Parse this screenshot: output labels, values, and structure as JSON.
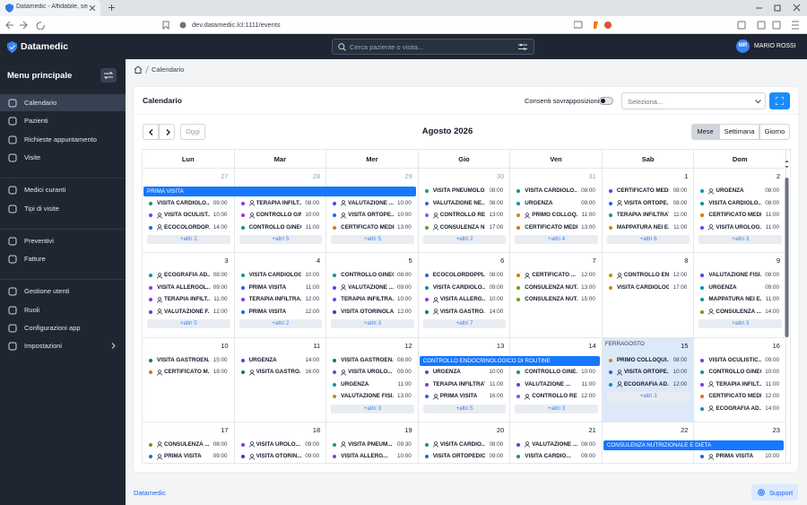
{
  "browser": {
    "tab_title": "Datamedic - Affidabile, semp...",
    "url": "dev.datamedic.lcl:1111/events"
  },
  "header": {
    "brand": "Datamedic",
    "search_placeholder": "Cerca paziente o visita...",
    "avatar_initials": "MR",
    "user_name": "MARIO ROSSI"
  },
  "sidebar": {
    "title": "Menu principale",
    "groups": [
      [
        {
          "label": "Calendario",
          "active": true
        },
        {
          "label": "Pazienti"
        },
        {
          "label": "Richieste appuntamento"
        },
        {
          "label": "Visite"
        }
      ],
      [
        {
          "label": "Medici curanti"
        },
        {
          "label": "Tipi di visite"
        }
      ],
      [
        {
          "label": "Preventivi"
        },
        {
          "label": "Fatture"
        }
      ],
      [
        {
          "label": "Gestione utenti"
        },
        {
          "label": "Ruoli"
        },
        {
          "label": "Configurazioni app"
        },
        {
          "label": "Impostazioni",
          "submenu": true
        }
      ]
    ]
  },
  "breadcrumb": {
    "current": "Calendario"
  },
  "calendar": {
    "title": "Calendario",
    "overlap_label": "Consenti sovrapposizioni",
    "select_placeholder": "Seleziona...",
    "today_button": "Oggi",
    "month_label": "Agosto 2026",
    "views": [
      {
        "label": "Mese",
        "active": true
      },
      {
        "label": "Settimana"
      },
      {
        "label": "Giorno"
      }
    ],
    "weekdays": [
      "Lun",
      "Mar",
      "Mer",
      "Gio",
      "Ven",
      "Sab",
      "Dom"
    ],
    "weeks": [
      {
        "banners": [
          {
            "label": "PRIMA VISITA",
            "days": [
              27,
              28,
              29
            ]
          }
        ],
        "days": [
          {
            "number": 27,
            "muted": true,
            "more": "+altri 2",
            "events": [
              {
                "title": "VISITA CARDIOLO...",
                "time": "09:00",
                "color": "#0d9488"
              },
              {
                "title": "VISITA OCULIST...",
                "time": "10:00",
                "color": "#7c3aed",
                "patient": true
              },
              {
                "title": "ECOCOLORDOP...",
                "time": "14:00",
                "color": "#2563eb",
                "patient": true
              }
            ]
          },
          {
            "number": 28,
            "muted": true,
            "more": "+altri 5",
            "events": [
              {
                "title": "TERAPIA INFILT...",
                "time": "08:00",
                "color": "#7c3aed",
                "patient": true
              },
              {
                "title": "CONTROLLO GINEC...",
                "time": "10:00",
                "color": "#9333ea",
                "patient": true
              },
              {
                "title": "CONTROLLO GINEC...",
                "time": "11:00",
                "color": "#0d9488"
              }
            ]
          },
          {
            "number": 29,
            "muted": true,
            "more": "+altri 5",
            "events": [
              {
                "title": "VALUTAZIONE ...",
                "time": "10:00",
                "color": "#4f46e5",
                "patient": true
              },
              {
                "title": "VISITA ORTOPE...",
                "time": "10:00",
                "color": "#2563eb",
                "patient": true
              },
              {
                "title": "CERTIFICATO MEDI...",
                "time": "13:00",
                "color": "#d97706"
              }
            ]
          },
          {
            "number": 30,
            "muted": true,
            "more": "+altri 2",
            "events": [
              {
                "title": "VISITA PNEUMOLO...",
                "time": "08:00",
                "color": "#16a34a"
              },
              {
                "title": "VALUTAZIONE NE...",
                "time": "08:00",
                "color": "#2563eb"
              },
              {
                "title": "CONTROLLO RE...",
                "time": "13:00",
                "color": "#6366f1",
                "patient": true
              },
              {
                "title": "CONSULENZA N...",
                "time": "17:00",
                "color": "#65a30d",
                "patient": true
              }
            ]
          },
          {
            "number": 31,
            "muted": true,
            "more": "+altri 4",
            "events": [
              {
                "title": "VISITA CARDIOLO...",
                "time": "08:00",
                "color": "#0d9488"
              },
              {
                "title": "URGENZA",
                "time": "09:00",
                "color": "#0891b2"
              },
              {
                "title": "PRIMO COLLOQ...",
                "time": "11:00",
                "color": "#ca8a04",
                "patient": true
              },
              {
                "title": "CERTIFICATO MEDI...",
                "time": "13:00",
                "color": "#d97706"
              }
            ]
          },
          {
            "number": 1,
            "more": "+altri 6",
            "events": [
              {
                "title": "CERTIFICATO MEDI...",
                "time": "08:00",
                "color": "#4f46e5"
              },
              {
                "title": "VISITA ORTOPE...",
                "time": "08:00",
                "color": "#2563eb",
                "patient": true
              },
              {
                "title": "TERAPIA INFILTRAT...",
                "time": "11:00",
                "color": "#0d9488"
              },
              {
                "title": "MAPPATURA NEI E...",
                "time": "11:00",
                "color": "#ca8a04"
              }
            ]
          },
          {
            "number": 2,
            "more": "+altri 3",
            "events": [
              {
                "title": "URGENZA",
                "time": "08:00",
                "color": "#0891b2",
                "patient": true
              },
              {
                "title": "VISITA CARDIOLO...",
                "time": "08:00",
                "color": "#0d9488"
              },
              {
                "title": "CERTIFICATO MEDI...",
                "time": "11:00",
                "color": "#d97706"
              },
              {
                "title": "VISITA UROLOG...",
                "time": "11:00",
                "color": "#7c3aed",
                "patient": true
              }
            ]
          }
        ]
      },
      {
        "banners": [],
        "days": [
          {
            "number": 3,
            "more": "+altri 5",
            "events": [
              {
                "title": "ECOGRAFIA AD...",
                "time": "08:00",
                "color": "#0891b2",
                "patient": true
              },
              {
                "title": "VISITA ALLERGOL...",
                "time": "09:00",
                "color": "#9333ea"
              },
              {
                "title": "TERAPIA INFILT...",
                "time": "11:00",
                "color": "#7c3aed",
                "patient": true
              },
              {
                "title": "VALUTAZIONE F...",
                "time": "12:00",
                "color": "#4f46e5",
                "patient": true
              }
            ]
          },
          {
            "number": 4,
            "more": "+altri 2",
            "events": [
              {
                "title": "VISITA CARDIOLOG...",
                "time": "10:00",
                "color": "#0d9488"
              },
              {
                "title": "PRIMA VISITA",
                "time": "11:00",
                "color": "#2563eb"
              },
              {
                "title": "TERAPIA INFILTRA...",
                "time": "12:00",
                "color": "#7c3aed"
              },
              {
                "title": "PRIMA VISITA",
                "time": "12:00",
                "color": "#2563eb"
              }
            ]
          },
          {
            "number": 5,
            "more": "+altri 3",
            "events": [
              {
                "title": "CONTROLLO GINEC...",
                "time": "08:00",
                "color": "#0d9488"
              },
              {
                "title": "VALUTAZIONE ...",
                "time": "09:00",
                "color": "#4f46e5",
                "patient": true
              },
              {
                "title": "TERAPIA INFILTRA...",
                "time": "10:00",
                "color": "#7c3aed"
              },
              {
                "title": "VISITA OTORINOLA...",
                "time": "12:00",
                "color": "#4338ca"
              }
            ]
          },
          {
            "number": 6,
            "more": "+altri 7",
            "events": [
              {
                "title": "ECOCOLORDOPPL...",
                "time": "08:00",
                "color": "#2563eb"
              },
              {
                "title": "VISITA CARDIOLO...",
                "time": "09:00",
                "color": "#0d9488"
              },
              {
                "title": "VISITA ALLERG...",
                "time": "10:00",
                "color": "#9333ea",
                "patient": true
              },
              {
                "title": "VISITA GASTRO...",
                "time": "14:00",
                "color": "#0f766e",
                "patient": true
              }
            ]
          },
          {
            "number": 7,
            "events": [
              {
                "title": "CERTIFICATO ...",
                "time": "12:00",
                "color": "#d97706",
                "patient": true
              },
              {
                "title": "CONSULENZA NUT...",
                "time": "13:00",
                "color": "#65a30d"
              },
              {
                "title": "CONSULENZA NUT...",
                "time": "15:00",
                "color": "#65a30d"
              }
            ]
          },
          {
            "number": 8,
            "events": [
              {
                "title": "CONTROLLO EN...",
                "time": "12:00",
                "color": "#ca8a04",
                "patient": true
              },
              {
                "title": "VISITA CARDIOLOG...",
                "time": "17:00",
                "color": "#ca8a04"
              }
            ]
          },
          {
            "number": 9,
            "more": "+altri 3",
            "events": [
              {
                "title": "VALUTAZIONE FISI...",
                "time": "08:00",
                "color": "#4f46e5"
              },
              {
                "title": "URGENZA",
                "time": "09:00",
                "color": "#0891b2"
              },
              {
                "title": "MAPPATURA NEI E...",
                "time": "11:00",
                "color": "#0d9488"
              },
              {
                "title": "CONSULENZA ...",
                "time": "14:00",
                "color": "#65a30d",
                "patient": true
              }
            ]
          }
        ]
      },
      {
        "banners": [
          {
            "label": "CONTROLLO ENDOCRINOLOGICO DI ROUTINE",
            "days": [
              13,
              14
            ]
          }
        ],
        "days": [
          {
            "number": 10,
            "events": [
              {
                "title": "VISITA GASTROEN...",
                "time": "15:00",
                "color": "#0f766e"
              },
              {
                "title": "CERTIFICATO M...",
                "time": "18:00",
                "color": "#d97706",
                "patient": true
              }
            ]
          },
          {
            "number": 11,
            "events": [
              {
                "title": "URGENZA",
                "time": "14:00",
                "color": "#4f46e5"
              },
              {
                "title": "VISITA GASTRO...",
                "time": "16:00",
                "color": "#0f766e",
                "patient": true
              }
            ]
          },
          {
            "number": 12,
            "more": "+altri 3",
            "events": [
              {
                "title": "VISITA GASTROEN...",
                "time": "08:00",
                "color": "#0f766e"
              },
              {
                "title": "VISITA UROLO...",
                "time": "09:00",
                "color": "#7c3aed",
                "patient": true
              },
              {
                "title": "URGENZA",
                "time": "11:00",
                "color": "#0891b2"
              },
              {
                "title": "VALUTAZIONE FISI...",
                "time": "13:00",
                "color": "#ca8a04"
              }
            ]
          },
          {
            "number": 13,
            "more": "+altri 5",
            "events": [
              {
                "title": "URGENZA",
                "time": "10:00",
                "color": "#4f46e5"
              },
              {
                "title": "TERAPIA INFILTRAT...",
                "time": "11:00",
                "color": "#7c3aed"
              },
              {
                "title": "PRIMA VISITA",
                "time": "16:00",
                "color": "#2563eb",
                "patient": true
              }
            ]
          },
          {
            "number": 14,
            "more": "+altri 3",
            "events": [
              {
                "title": "CONTROLLO GINE...",
                "time": "10:00",
                "color": "#0d9488"
              },
              {
                "title": "VALUTAZIONE ...",
                "time": "11:00",
                "color": "#4f46e5"
              },
              {
                "title": "CONTROLLO RE...",
                "time": "12:00",
                "color": "#6366f1",
                "patient": true
              }
            ]
          },
          {
            "number": 15,
            "holiday": "FERRAGOSTO",
            "more": "+altri 3",
            "events": [
              {
                "title": "PRIMO COLLOQUI...",
                "time": "08:00",
                "color": "#ca8a04"
              },
              {
                "title": "VISITA ORTOPE...",
                "time": "10:00",
                "color": "#2563eb",
                "patient": true
              },
              {
                "title": "ECOGRAFIA AD...",
                "time": "12:00",
                "color": "#0891b2",
                "patient": true
              }
            ]
          },
          {
            "number": 16,
            "events": [
              {
                "title": "VISITA OCULISTIC...",
                "time": "09:00",
                "color": "#7c3aed"
              },
              {
                "title": "CONTROLLO GINEC...",
                "time": "10:00",
                "color": "#0d9488"
              },
              {
                "title": "TERAPIA INFILT...",
                "time": "11:00",
                "color": "#7c3aed",
                "patient": true
              },
              {
                "title": "CERTIFICATO MEDI...",
                "time": "12:00",
                "color": "#d97706"
              },
              {
                "title": "ECOGRAFIA AD...",
                "time": "14:00",
                "color": "#0891b2",
                "patient": true
              }
            ]
          }
        ]
      },
      {
        "banners": [
          {
            "label": "CONSULENZA NUTRIZIONALE E DIETA",
            "days": [
              22,
              23
            ]
          }
        ],
        "days": [
          {
            "number": 17,
            "events": [
              {
                "title": "CONSULENZA ...",
                "time": "08:00",
                "color": "#65a30d",
                "patient": true
              },
              {
                "title": "PRIMA VISITA",
                "time": "09:00",
                "color": "#2563eb",
                "patient": true
              }
            ]
          },
          {
            "number": 18,
            "events": [
              {
                "title": "VISITA UROLO...",
                "time": "09:00",
                "color": "#7c3aed",
                "patient": true
              },
              {
                "title": "VISITA OTORIN...",
                "time": "09:00",
                "color": "#4338ca",
                "patient": true
              }
            ]
          },
          {
            "number": 19,
            "events": [
              {
                "title": "VISITA PNEUM...",
                "time": "09:30",
                "color": "#16a34a",
                "patient": true
              },
              {
                "title": "VISITA ALLERG...",
                "time": "10:00",
                "color": "#9333ea"
              }
            ]
          },
          {
            "number": 20,
            "events": [
              {
                "title": "VISITA CARDIO...",
                "time": "08:00",
                "color": "#0d9488",
                "patient": true
              },
              {
                "title": "VISITA ORTOPEDIC...",
                "time": "09:00",
                "color": "#2563eb"
              }
            ]
          },
          {
            "number": 21,
            "events": [
              {
                "title": "VALUTAZIONE ...",
                "time": "08:00",
                "color": "#4f46e5",
                "patient": true
              },
              {
                "title": "VISITA CARDIO...",
                "time": "09:00",
                "color": "#0d9488"
              }
            ]
          },
          {
            "number": 22,
            "events": []
          },
          {
            "number": 23,
            "events": [
              {
                "title": "PRIMA VISITA",
                "time": "10:00",
                "color": "#2563eb",
                "patient": true
              }
            ]
          }
        ]
      }
    ]
  },
  "footer": {
    "brand_link": "Datamedic",
    "support_button": "Support"
  }
}
